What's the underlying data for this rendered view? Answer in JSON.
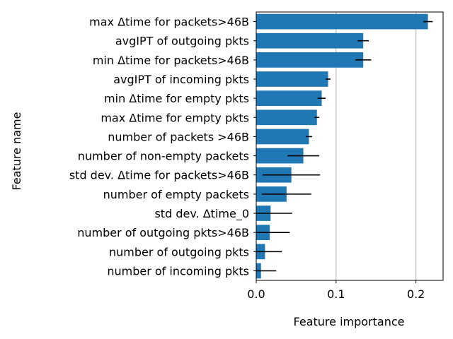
{
  "chart_data": {
    "type": "bar",
    "orientation": "horizontal",
    "xlabel": "Feature importance",
    "ylabel": "Feature name",
    "xlim": [
      0,
      0.234
    ],
    "xticks": [
      0.0,
      0.1,
      0.2
    ],
    "xtick_labels": [
      "0.0",
      "0.1",
      "0.2"
    ],
    "grid": "vertical lines at x ticks",
    "bar_color": "#1f77b4",
    "errorbar_color": "#000000",
    "categories": [
      "max Δtime for packets>46B",
      "avgIPT of outgoing pkts",
      "min Δtime for packets>46B",
      "avgIPT of incoming pkts",
      "min Δtime for empty pkts",
      "max Δtime for empty pkts",
      "number of packets >46B",
      "number of non-empty packets",
      "std dev. Δtime for packets>46B",
      "number of empty packets",
      "std dev. Δtime_0",
      "number of outgoing pkts>46B",
      "number of outgoing pkts",
      "number of incoming pkts"
    ],
    "values": [
      0.215,
      0.134,
      0.134,
      0.09,
      0.082,
      0.076,
      0.066,
      0.059,
      0.044,
      0.038,
      0.018,
      0.017,
      0.011,
      0.006
    ],
    "errors": [
      0.006,
      0.007,
      0.01,
      0.003,
      0.005,
      0.003,
      0.004,
      0.02,
      0.036,
      0.031,
      0.027,
      0.025,
      0.021,
      0.019
    ]
  }
}
